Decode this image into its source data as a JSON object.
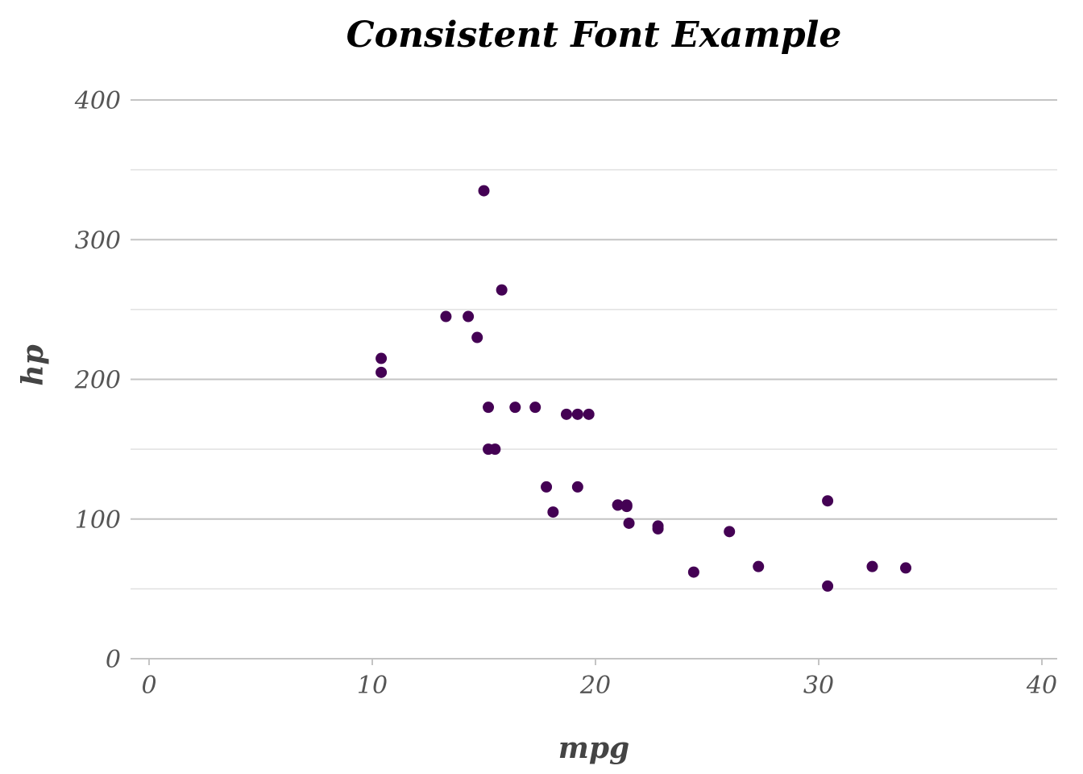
{
  "chart_data": {
    "type": "scatter",
    "title": "Consistent Font Example",
    "xlabel": "mpg",
    "ylabel": "hp",
    "xlim": [
      0,
      40
    ],
    "ylim": [
      0,
      400
    ],
    "x_ticks": [
      0,
      10,
      20,
      30,
      40
    ],
    "y_ticks": [
      0,
      100,
      200,
      300,
      400
    ],
    "y_minor_ticks": [
      50,
      150,
      250,
      350
    ],
    "grid": "horizontal",
    "point_color": "#440154",
    "points": [
      {
        "x": 21.0,
        "y": 110
      },
      {
        "x": 21.0,
        "y": 110
      },
      {
        "x": 22.8,
        "y": 93
      },
      {
        "x": 21.4,
        "y": 110
      },
      {
        "x": 18.7,
        "y": 175
      },
      {
        "x": 18.1,
        "y": 105
      },
      {
        "x": 14.3,
        "y": 245
      },
      {
        "x": 24.4,
        "y": 62
      },
      {
        "x": 22.8,
        "y": 95
      },
      {
        "x": 19.2,
        "y": 123
      },
      {
        "x": 17.8,
        "y": 123
      },
      {
        "x": 16.4,
        "y": 180
      },
      {
        "x": 17.3,
        "y": 180
      },
      {
        "x": 15.2,
        "y": 180
      },
      {
        "x": 10.4,
        "y": 205
      },
      {
        "x": 10.4,
        "y": 215
      },
      {
        "x": 14.7,
        "y": 230
      },
      {
        "x": 32.4,
        "y": 66
      },
      {
        "x": 30.4,
        "y": 52
      },
      {
        "x": 33.9,
        "y": 65
      },
      {
        "x": 21.5,
        "y": 97
      },
      {
        "x": 15.5,
        "y": 150
      },
      {
        "x": 15.2,
        "y": 150
      },
      {
        "x": 13.3,
        "y": 245
      },
      {
        "x": 19.2,
        "y": 175
      },
      {
        "x": 27.3,
        "y": 66
      },
      {
        "x": 26.0,
        "y": 91
      },
      {
        "x": 30.4,
        "y": 113
      },
      {
        "x": 15.8,
        "y": 264
      },
      {
        "x": 19.7,
        "y": 175
      },
      {
        "x": 15.0,
        "y": 335
      },
      {
        "x": 21.4,
        "y": 109
      }
    ]
  }
}
